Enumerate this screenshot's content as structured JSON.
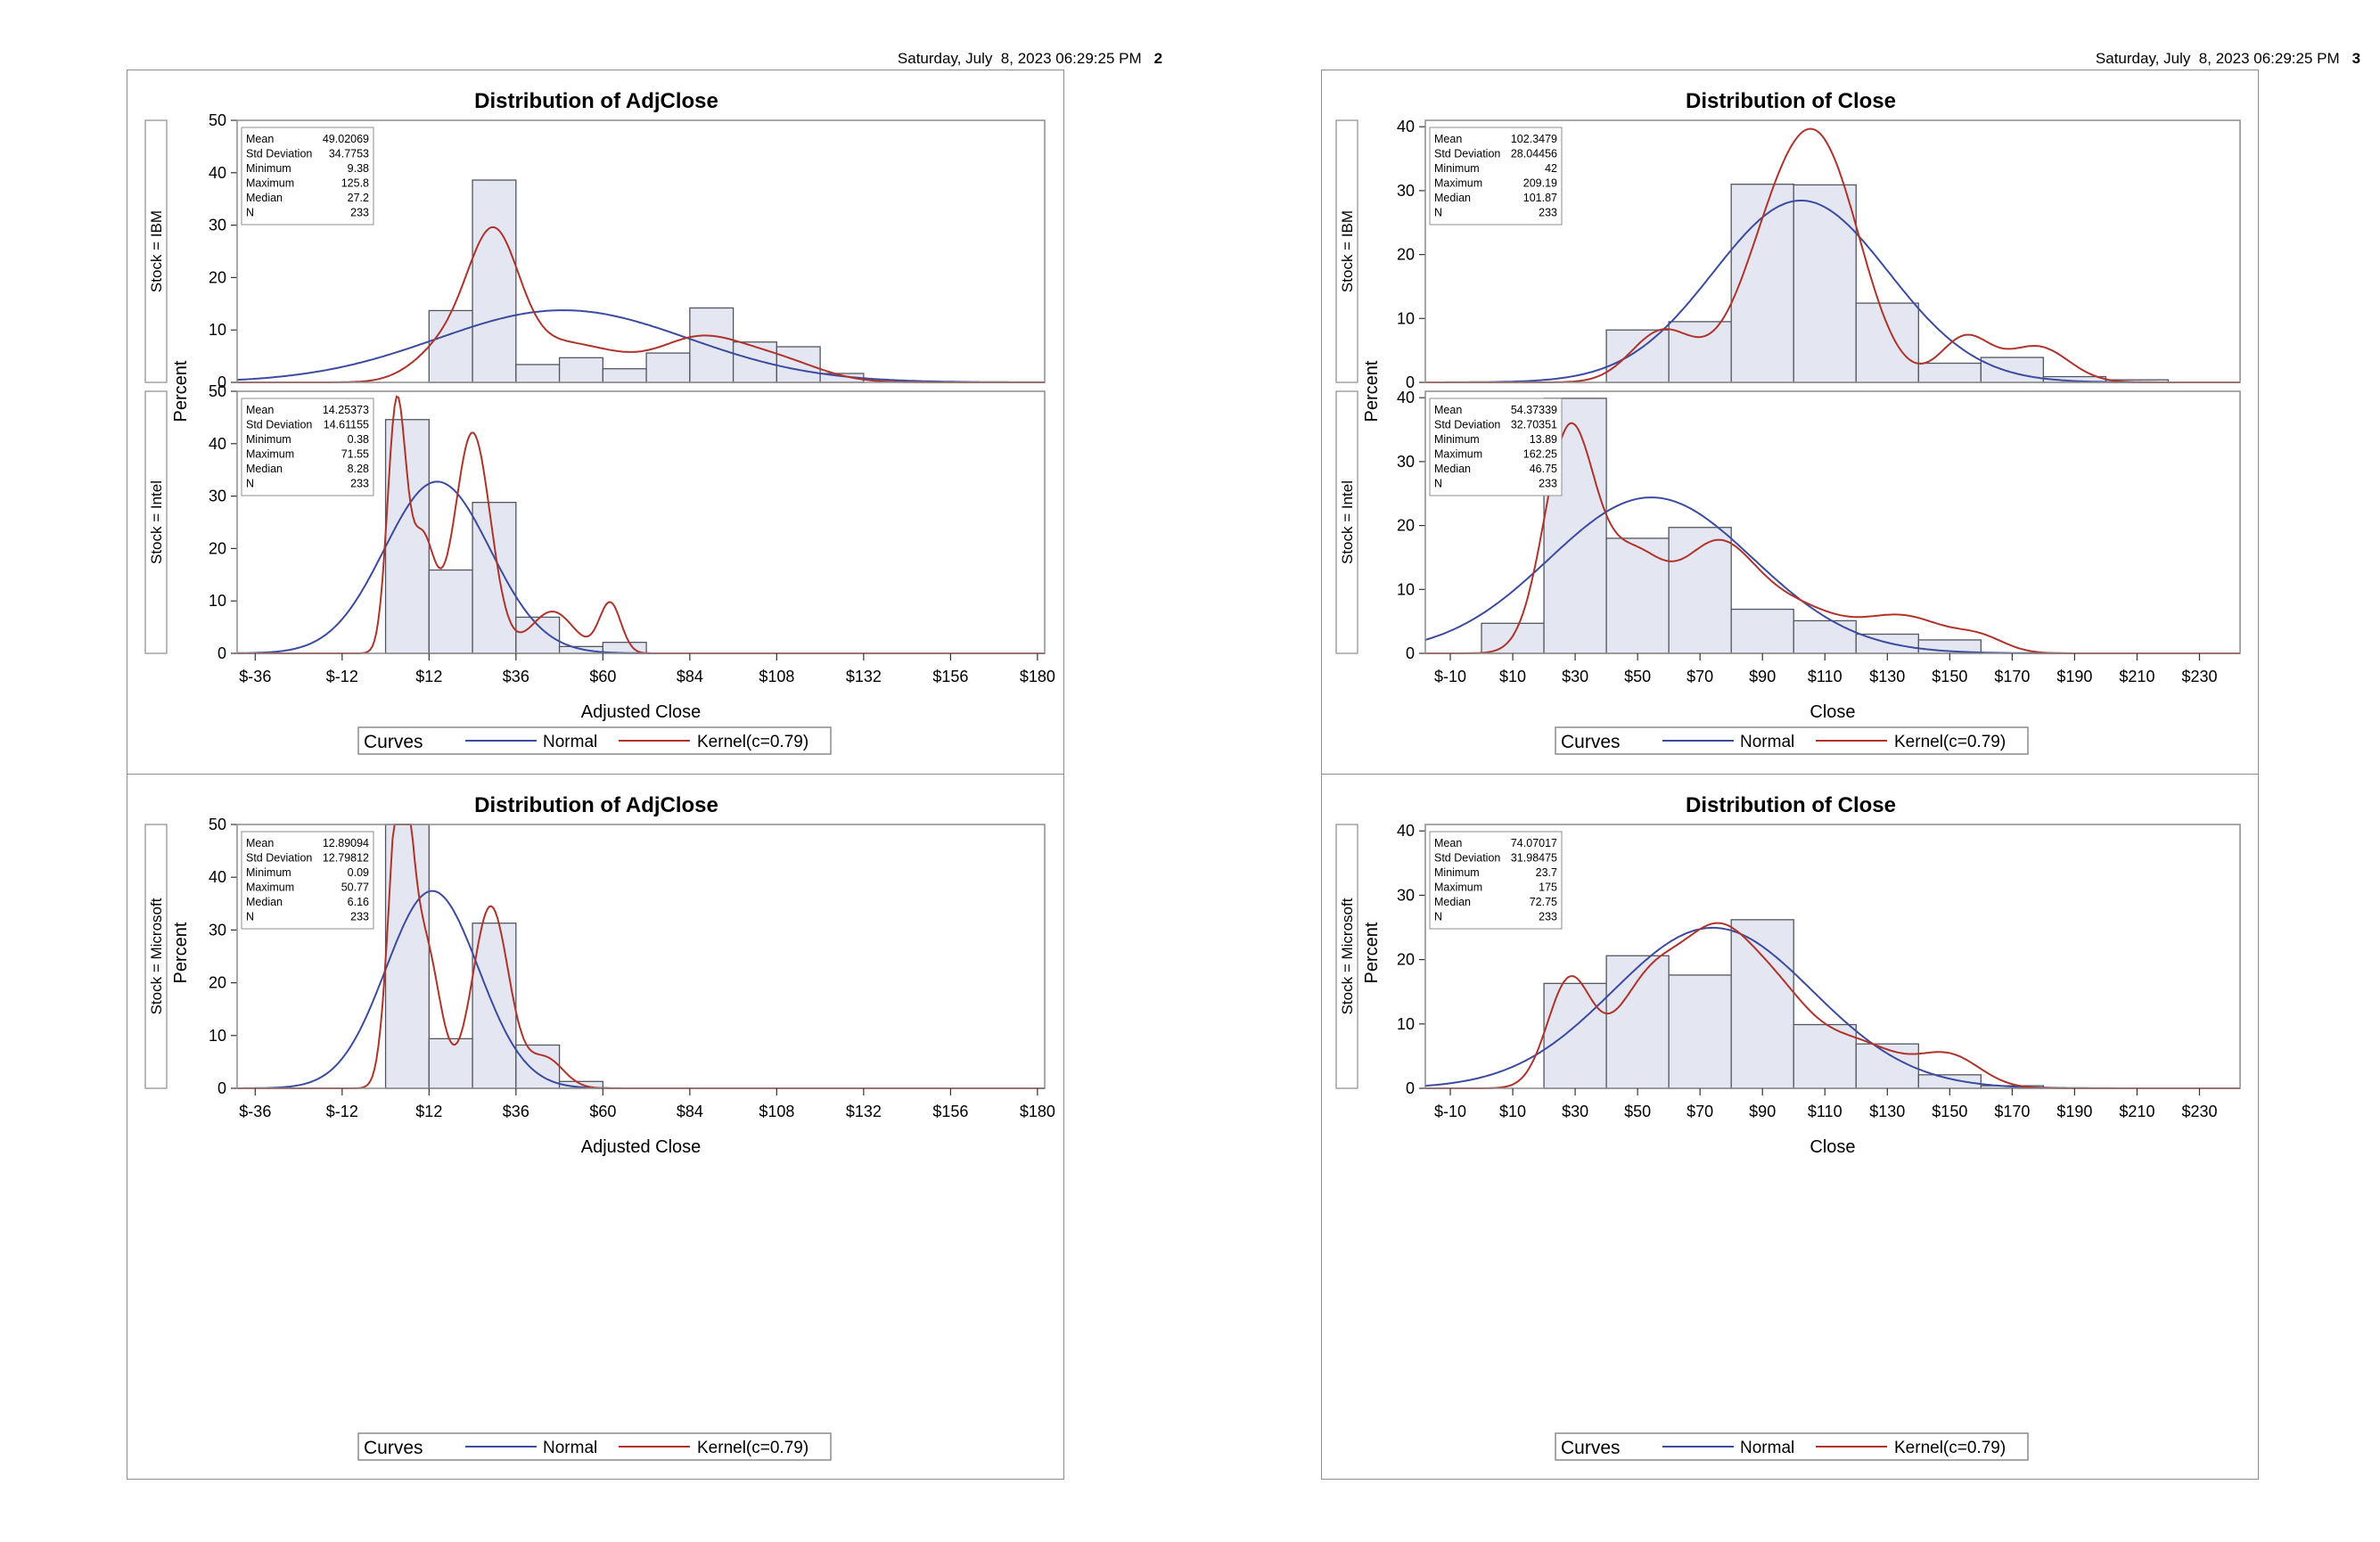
{
  "pages": [
    {
      "header_date": "Saturday, July  8, 2023 06:29:25 PM",
      "page_number": "2",
      "panels": [
        {
          "title": "Distribution of AdjClose",
          "xlabel": "Adjusted Close",
          "ylabel": "Percent",
          "legend": {
            "title": "Curves",
            "normal": "Normal",
            "kernel": "Kernel(c=0.79)"
          }
        },
        {
          "title": "Distribution of AdjClose",
          "xlabel": "Adjusted Close",
          "ylabel": "Percent",
          "legend": {
            "title": "Curves",
            "normal": "Normal",
            "kernel": "Kernel(c=0.79)"
          }
        }
      ]
    },
    {
      "header_date": "Saturday, July  8, 2023 06:29:25 PM",
      "page_number": "3",
      "panels": [
        {
          "title": "Distribution of Close",
          "xlabel": "Close",
          "ylabel": "Percent",
          "legend": {
            "title": "Curves",
            "normal": "Normal",
            "kernel": "Kernel(c=0.79)"
          }
        },
        {
          "title": "Distribution of Close",
          "xlabel": "Close",
          "ylabel": "Percent",
          "legend": {
            "title": "Curves",
            "normal": "Normal",
            "kernel": "Kernel(c=0.79)"
          }
        }
      ]
    }
  ],
  "colors": {
    "bar_fill": "#e4e7f1",
    "bar_stroke": "#53565e",
    "normal": "#3b4ba0",
    "kernel": "#b0332b",
    "frame": "#8c8c8c"
  },
  "chart_data": [
    {
      "type": "bar",
      "title": "Distribution of AdjClose",
      "xlabel": "Adjusted Close",
      "ylabel": "Percent",
      "xlim": [
        -41,
        182
      ],
      "x_ticks": [
        -36,
        -12,
        12,
        36,
        60,
        84,
        108,
        132,
        156,
        180
      ],
      "x_tick_labels": [
        "$-36",
        "$-12",
        "$12",
        "$36",
        "$60",
        "$84",
        "$108",
        "$132",
        "$156",
        "$180"
      ],
      "bin_width": 12,
      "facets": [
        {
          "label": "Stock = IBM",
          "ylim": [
            0,
            50
          ],
          "y_ticks": [
            0,
            10,
            20,
            30,
            40,
            50
          ],
          "bins": [
            6,
            18,
            30,
            42,
            54,
            66,
            78,
            90,
            102,
            114,
            126
          ],
          "values": [
            0,
            13.7,
            38.6,
            3.4,
            4.7,
            2.6,
            5.6,
            14.2,
            7.7,
            6.8,
            1.7
          ],
          "normal": {
            "mean": 49.02069,
            "sd": 34.7753
          },
          "kernel": {
            "means": [
              18,
              30,
              45,
              60,
              86,
              108
            ],
            "sds": [
              9,
              7,
              10,
              10,
              12,
              12
            ],
            "weights": [
              0.14,
              0.36,
              0.12,
              0.08,
              0.2,
              0.1
            ]
          },
          "stats": [
            [
              "Mean",
              "49.02069"
            ],
            [
              "Std Deviation",
              "34.7753"
            ],
            [
              "Minimum",
              "9.38"
            ],
            [
              "Maximum",
              "125.8"
            ],
            [
              "Median",
              "27.2"
            ],
            [
              "N",
              "233"
            ]
          ]
        },
        {
          "label": "Stock = Intel",
          "ylim": [
            0,
            50
          ],
          "y_ticks": [
            0,
            10,
            20,
            30,
            40,
            50
          ],
          "bins": [
            6,
            18,
            30,
            42,
            54,
            66
          ],
          "values": [
            44.6,
            15.9,
            28.8,
            6.9,
            1.3,
            2.1
          ],
          "normal": {
            "mean": 14.25373,
            "sd": 14.61155
          },
          "kernel": {
            "means": [
              3,
              10,
              24,
              46,
              62
            ],
            "sds": [
              2.5,
              3.5,
              5,
              6,
              3
            ],
            "weights": [
              0.24,
              0.16,
              0.44,
              0.1,
              0.06
            ]
          },
          "stats": [
            [
              "Mean",
              "14.25373"
            ],
            [
              "Std Deviation",
              "14.61155"
            ],
            [
              "Minimum",
              "0.38"
            ],
            [
              "Maximum",
              "71.55"
            ],
            [
              "Median",
              "8.28"
            ],
            [
              "N",
              "233"
            ]
          ]
        },
        {
          "label": "Stock = Microsoft",
          "ylim": [
            0,
            50
          ],
          "y_ticks": [
            0,
            10,
            20,
            30,
            40,
            50
          ],
          "bins": [
            6,
            18,
            30,
            42,
            54
          ],
          "values": [
            50,
            9.4,
            31.3,
            8.2,
            1.3
          ],
          "normal": {
            "mean": 12.89094,
            "sd": 12.79812
          },
          "kernel": {
            "means": [
              4,
              11,
              29,
              44
            ],
            "sds": [
              3,
              4,
              5,
              5
            ],
            "weights": [
              0.36,
              0.22,
              0.36,
              0.06
            ]
          },
          "stats": [
            [
              "Mean",
              "12.89094"
            ],
            [
              "Std Deviation",
              "12.79812"
            ],
            [
              "Minimum",
              "0.09"
            ],
            [
              "Maximum",
              "50.77"
            ],
            [
              "Median",
              "6.16"
            ],
            [
              "N",
              "233"
            ]
          ]
        }
      ]
    },
    {
      "type": "bar",
      "title": "Distribution of Close",
      "xlabel": "Close",
      "ylabel": "Percent",
      "xlim": [
        -18,
        243
      ],
      "x_ticks": [
        -10,
        10,
        30,
        50,
        70,
        90,
        110,
        130,
        150,
        170,
        190,
        210,
        230
      ],
      "x_tick_labels": [
        "$-10",
        "$10",
        "$30",
        "$50",
        "$70",
        "$90",
        "$110",
        "$130",
        "$150",
        "$170",
        "$190",
        "$210",
        "$230"
      ],
      "bin_width": 20,
      "facets": [
        {
          "label": "Stock = IBM",
          "ylim": [
            0,
            41
          ],
          "y_ticks": [
            0,
            10,
            20,
            30,
            40
          ],
          "bins": [
            10,
            30,
            50,
            70,
            90,
            110,
            130,
            150,
            170,
            190,
            210
          ],
          "values": [
            0,
            0,
            8.2,
            9.5,
            31.0,
            30.9,
            12.4,
            3.0,
            3.9,
            0.9,
            0.4
          ],
          "normal": {
            "mean": 102.3479,
            "sd": 28.04456
          },
          "kernel": {
            "means": [
              58,
              96,
              112,
              155,
              178
            ],
            "sds": [
              10,
              13,
              12,
              8,
              10
            ],
            "weights": [
              0.1,
              0.38,
              0.38,
              0.07,
              0.07
            ]
          },
          "stats": [
            [
              "Mean",
              "102.3479"
            ],
            [
              "Std Deviation",
              "28.04456"
            ],
            [
              "Minimum",
              "42"
            ],
            [
              "Maximum",
              "209.19"
            ],
            [
              "Median",
              "101.87"
            ],
            [
              "N",
              "233"
            ]
          ]
        },
        {
          "label": "Stock = Intel",
          "ylim": [
            0,
            41
          ],
          "y_ticks": [
            0,
            10,
            20,
            30,
            40
          ],
          "bins": [
            10,
            30,
            50,
            70,
            90,
            110,
            130,
            150,
            170
          ],
          "values": [
            4.7,
            39.9,
            18.0,
            19.7,
            6.9,
            5.1,
            3.0,
            2.1,
            0
          ],
          "normal": {
            "mean": 54.37339,
            "sd": 32.70351
          },
          "kernel": {
            "means": [
              28,
              48,
              75,
              100,
              135,
              160
            ],
            "sds": [
              8,
              10,
              12,
              14,
              14,
              8
            ],
            "weights": [
              0.34,
              0.18,
              0.24,
              0.12,
              0.1,
              0.02
            ]
          },
          "stats": [
            [
              "Mean",
              "54.37339"
            ],
            [
              "Std Deviation",
              "32.70351"
            ],
            [
              "Minimum",
              "13.89"
            ],
            [
              "Maximum",
              "162.25"
            ],
            [
              "Median",
              "46.75"
            ],
            [
              "N",
              "233"
            ]
          ]
        },
        {
          "label": "Stock = Microsoft",
          "ylim": [
            0,
            41
          ],
          "y_ticks": [
            0,
            10,
            20,
            30,
            40
          ],
          "bins": [
            30,
            50,
            70,
            90,
            110,
            130,
            150,
            170
          ],
          "values": [
            16.3,
            20.6,
            17.6,
            26.2,
            9.9,
            6.9,
            2.1,
            0.4
          ],
          "normal": {
            "mean": 74.07017,
            "sd": 31.98475
          },
          "kernel": {
            "means": [
              28,
              55,
              75,
              92,
              120,
              150
            ],
            "sds": [
              7,
              12,
              10,
              12,
              14,
              10
            ],
            "weights": [
              0.14,
              0.26,
              0.2,
              0.22,
              0.12,
              0.06
            ]
          },
          "stats": [
            [
              "Mean",
              "74.07017"
            ],
            [
              "Std Deviation",
              "31.98475"
            ],
            [
              "Minimum",
              "23.7"
            ],
            [
              "Maximum",
              "175"
            ],
            [
              "Median",
              "72.75"
            ],
            [
              "N",
              "233"
            ]
          ]
        }
      ]
    }
  ]
}
